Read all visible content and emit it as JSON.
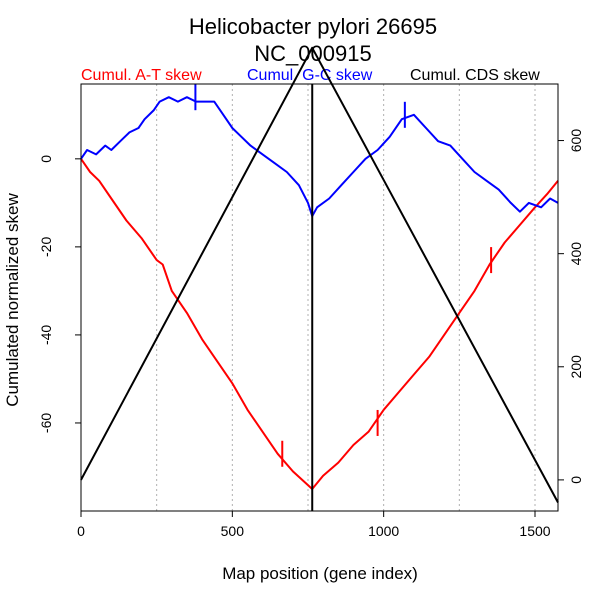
{
  "chart_data": {
    "type": "line",
    "title": "Helicobacter pylori 26695",
    "subtitle": "NC_000915",
    "xlabel": "Map position (gene index)",
    "ylabel": "Cumulated normalized skew",
    "xlim": [
      0,
      1576
    ],
    "ylim_left": [
      -80,
      17
    ],
    "ylim_right": [
      -55,
      700
    ],
    "x_ticks": [
      0,
      500,
      1000,
      1500
    ],
    "y_ticks_left": [
      0,
      -20,
      -40,
      -60
    ],
    "y_ticks_right": [
      0,
      200,
      400,
      600
    ],
    "vertical_gridlines": [
      0,
      250,
      500,
      750,
      1000,
      1250,
      1500
    ],
    "origin_line_x": 764,
    "grid": "vertical dotted",
    "legend_position": "top",
    "series": [
      {
        "name": "Cumul. A-T skew",
        "color": "#ff0000",
        "axis": "left",
        "x": [
          0,
          30,
          60,
          100,
          150,
          200,
          250,
          270,
          300,
          350,
          400,
          450,
          500,
          550,
          600,
          650,
          700,
          764,
          800,
          850,
          900,
          950,
          1000,
          1050,
          1100,
          1150,
          1200,
          1250,
          1300,
          1350,
          1400,
          1450,
          1500,
          1540,
          1576
        ],
        "values": [
          0,
          -3,
          -5,
          -9,
          -14,
          -18,
          -23,
          -24,
          -30,
          -35,
          -41,
          -46,
          -51,
          -57,
          -62,
          -67,
          -71,
          -75,
          -72,
          -69,
          -65,
          -62,
          -57,
          -53,
          -49,
          -45,
          -40,
          -35,
          -30,
          -24,
          -19,
          -15,
          -11,
          -8,
          -5
        ]
      },
      {
        "name": "Cumul. G-C skew",
        "color": "#0000ff",
        "axis": "left",
        "x": [
          0,
          20,
          50,
          80,
          100,
          130,
          160,
          190,
          210,
          240,
          260,
          290,
          320,
          350,
          380,
          410,
          440,
          470,
          500,
          530,
          560,
          600,
          640,
          680,
          720,
          750,
          764,
          780,
          820,
          860,
          900,
          940,
          980,
          1020,
          1060,
          1100,
          1140,
          1180,
          1220,
          1260,
          1300,
          1340,
          1380,
          1420,
          1450,
          1480,
          1520,
          1550,
          1576
        ],
        "values": [
          0,
          2,
          1,
          3,
          2,
          4,
          6,
          7,
          9,
          11,
          13,
          14,
          13,
          14,
          13,
          13,
          13,
          10,
          7,
          5,
          3,
          1,
          -1,
          -3,
          -6,
          -10,
          -13,
          -11,
          -9,
          -6,
          -3,
          0,
          2,
          5,
          9,
          10,
          7,
          4,
          3,
          0,
          -3,
          -5,
          -7,
          -10,
          -12,
          -10,
          -11,
          -9,
          -10
        ]
      },
      {
        "name": "Cumul. CDS skew",
        "color": "#000000",
        "axis": "right",
        "x": [
          0,
          764,
          1576
        ],
        "values": [
          0,
          764,
          -40
        ]
      }
    ],
    "tick_marks": {
      "at": {
        "x": [
          665,
          980,
          1355
        ],
        "values": [
          -67,
          -60,
          -23
        ],
        "color": "#ff0000"
      },
      "gc": {
        "x": [
          378,
          1070
        ],
        "values": [
          14,
          10
        ],
        "color": "#0000ff"
      }
    }
  }
}
